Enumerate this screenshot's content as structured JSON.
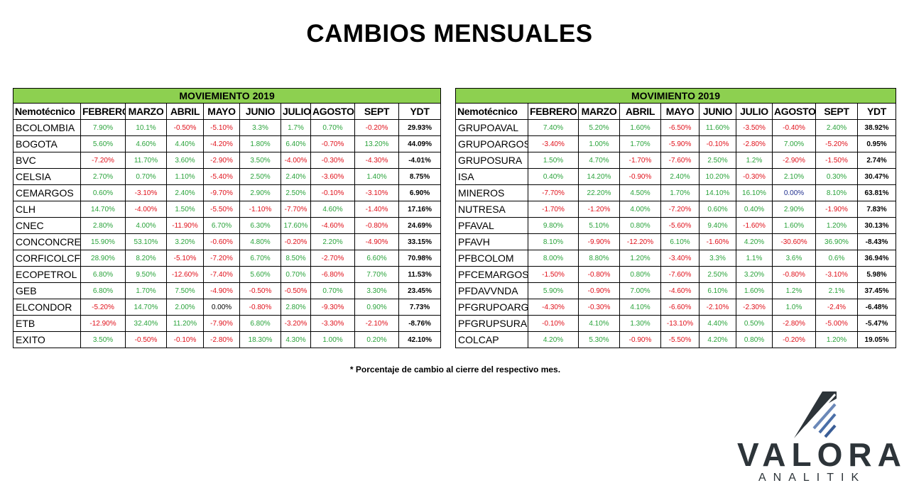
{
  "title": "CAMBIOS MENSUALES",
  "footnote": "* Porcentaje de cambio al cierre del respectivo mes.",
  "logo": {
    "brand": "VALORA",
    "sub": "ANALITIK"
  },
  "colors": {
    "banner": "#8dd050",
    "positive": "#2aa33b",
    "negative": "#e0101a",
    "neutral_blue": "#1f2f8f"
  },
  "tables": [
    {
      "banner": "MOVIEMIENTO 2019",
      "headers": [
        "Nemotécnico",
        "FEBRERO",
        "MARZO",
        "ABRIL",
        "MAYO",
        "JUNIO",
        "JULIO",
        "AGOSTO",
        "SEPT",
        "YDT"
      ],
      "rows": [
        [
          "BCOLOMBIA",
          "7.90%",
          "10.1%",
          "-0.50%",
          "-5.10%",
          "3.3%",
          "1.7%",
          "0.70%",
          "-0.20%",
          "29.93%"
        ],
        [
          "BOGOTA",
          "5.60%",
          "4.60%",
          "4.40%",
          "-4.20%",
          "1.80%",
          "6.40%",
          "-0.70%",
          "13.20%",
          "44.09%"
        ],
        [
          "BVC",
          "-7.20%",
          "11.70%",
          "3.60%",
          "-2.90%",
          "3.50%",
          "-4.00%",
          "-0.30%",
          "-4.30%",
          "-4.01%"
        ],
        [
          "CELSIA",
          "2.70%",
          "0.70%",
          "1.10%",
          "-5.40%",
          "2.50%",
          "2.40%",
          "-3.60%",
          "1.40%",
          "8.75%"
        ],
        [
          "CEMARGOS",
          "0.60%",
          "-3.10%",
          "2.40%",
          "-9.70%",
          "2.90%",
          "2.50%",
          "-0.10%",
          "-3.10%",
          "6.90%"
        ],
        [
          "CLH",
          "14.70%",
          "-4.00%",
          "1.50%",
          "-5.50%",
          "-1.10%",
          "-7.70%",
          "4.60%",
          "-1.40%",
          "17.16%"
        ],
        [
          "CNEC",
          "2.80%",
          "4.00%",
          "-11.90%",
          "6.70%",
          "6.30%",
          "17.60%",
          "-4.60%",
          "-0.80%",
          "24.69%"
        ],
        [
          "CONCONCRET",
          "15.90%",
          "53.10%",
          "3.20%",
          "-0.60%",
          "4.80%",
          "-0.20%",
          "2.20%",
          "-4.90%",
          "33.15%"
        ],
        [
          "CORFICOLCF",
          "28.90%",
          "8.20%",
          "-5.10%",
          "-7.20%",
          "6.70%",
          "8.50%",
          "-2.70%",
          "6.60%",
          "70.98%"
        ],
        [
          "ECOPETROL",
          "6.80%",
          "9.50%",
          "-12.60%",
          "-7.40%",
          "5.60%",
          "0.70%",
          "-6.80%",
          "7.70%",
          "11.53%"
        ],
        [
          "GEB",
          "6.80%",
          "1.70%",
          "7.50%",
          "-4.90%",
          "-0.50%",
          "-0.50%",
          "0.70%",
          "3.30%",
          "23.45%"
        ],
        [
          "ELCONDOR",
          "-5.20%",
          "14.70%",
          "2.00%",
          "0.00%",
          "-0.80%",
          "2.80%",
          "-9.30%",
          "0.90%",
          "7.73%"
        ],
        [
          "ETB",
          "-12.90%",
          "32.40%",
          "11.20%",
          "-7.90%",
          "6.80%",
          "-3.20%",
          "-3.30%",
          "-2.10%",
          "-8.76%"
        ],
        [
          "EXITO",
          "3.50%",
          "-0.50%",
          "-0.10%",
          "-2.80%",
          "18.30%",
          "4.30%",
          "1.00%",
          "0.20%",
          "42.10%"
        ]
      ]
    },
    {
      "banner": "MOVIMIENTO  2019",
      "headers": [
        "Nemotécnico",
        "FEBRERO",
        "MARZO",
        "ABRIL",
        "MAYO",
        "JUNIO",
        "JULIO",
        "AGOSTO",
        "SEPT",
        "YDT"
      ],
      "rows": [
        [
          "GRUPOAVAL",
          "7.40%",
          "5.20%",
          "1.60%",
          "-6.50%",
          "11.60%",
          "-3.50%",
          "-0.40%",
          "2.40%",
          "38.92%"
        ],
        [
          "GRUPOARGOS",
          "-3.40%",
          "1.00%",
          "1.70%",
          "-5.90%",
          "-0.10%",
          "-2.80%",
          "7.00%",
          "-5.20%",
          "0.95%"
        ],
        [
          "GRUPOSURA",
          "1.50%",
          "4.70%",
          "-1.70%",
          "-7.60%",
          "2.50%",
          "1.2%",
          "-2.90%",
          "-1.50%",
          "2.74%"
        ],
        [
          "ISA",
          "0.40%",
          "14.20%",
          "-0.90%",
          "2.40%",
          "10.20%",
          "-0.30%",
          "2.10%",
          "0.30%",
          "30.47%"
        ],
        [
          "MINEROS",
          "-7.70%",
          "22.20%",
          "4.50%",
          "1.70%",
          "14.10%",
          "16.10%",
          "0.00%",
          "8.10%",
          "63.81%"
        ],
        [
          "NUTRESA",
          "-1.70%",
          "-1.20%",
          "4.00%",
          "-7.20%",
          "0.60%",
          "0.40%",
          "2.90%",
          "-1.90%",
          "7.83%"
        ],
        [
          "PFAVAL",
          "9.80%",
          "5.10%",
          "0.80%",
          "-5.60%",
          "9.40%",
          "-1.60%",
          "1.60%",
          "1.20%",
          "30.13%"
        ],
        [
          "PFAVH",
          "8.10%",
          "-9.90%",
          "-12.20%",
          "6.10%",
          "-1.60%",
          "4.20%",
          "-30.60%",
          "36.90%",
          "-8.43%"
        ],
        [
          "PFBCOLOM",
          "8.00%",
          "8.80%",
          "1.20%",
          "-3.40%",
          "3.3%",
          "1.1%",
          "3.6%",
          "0.6%",
          "36.94%"
        ],
        [
          "PFCEMARGOS",
          "-1.50%",
          "-0.80%",
          "0.80%",
          "-7.60%",
          "2.50%",
          "3.20%",
          "-0.80%",
          "-3.10%",
          "5.98%"
        ],
        [
          "PFDAVVNDA",
          "5.90%",
          "-0.90%",
          "7.00%",
          "-4.60%",
          "6.10%",
          "1.60%",
          "1.2%",
          "2.1%",
          "37.45%"
        ],
        [
          "PFGRUPOARG",
          "-4.30%",
          "-0.30%",
          "4.10%",
          "-6.60%",
          "-2.10%",
          "-2.30%",
          "1.0%",
          "-2.4%",
          "-6.48%"
        ],
        [
          "PFGRUPSURA",
          "-0.10%",
          "4.10%",
          "1.30%",
          "-13.10%",
          "4.40%",
          "0.50%",
          "-2.80%",
          "-5.00%",
          "-5.47%"
        ],
        [
          "COLCAP",
          "4.20%",
          "5.30%",
          "-0.90%",
          "-5.50%",
          "4.20%",
          "0.80%",
          "-0.20%",
          "1.20%",
          "19.05%"
        ]
      ]
    }
  ]
}
